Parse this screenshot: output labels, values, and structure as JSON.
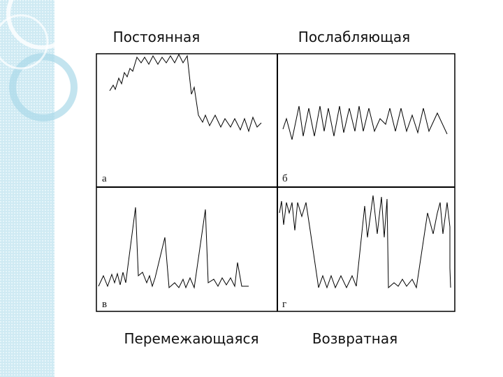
{
  "panels": [
    {
      "title": "Постоянная",
      "letter": "а"
    },
    {
      "title": "Послабляющая",
      "letter": "б"
    },
    {
      "title": "Перемежающаяся",
      "letter": "в"
    },
    {
      "title": "Возвратная",
      "letter": "г"
    }
  ]
}
